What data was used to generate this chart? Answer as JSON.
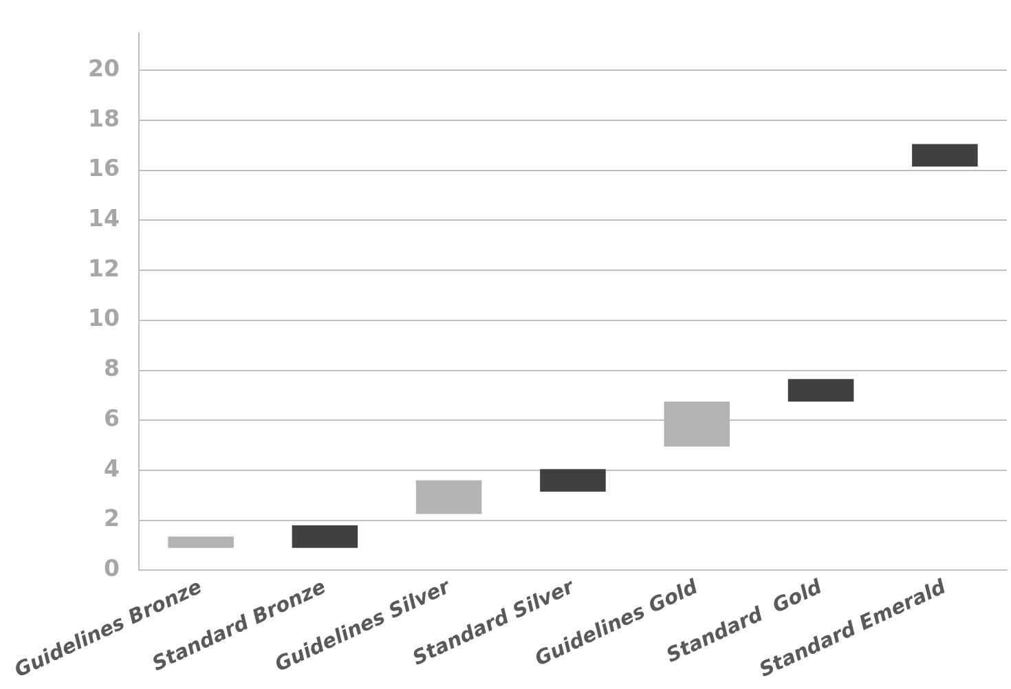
{
  "chart_data": {
    "type": "bar",
    "categories": [
      "Guidelines Bronze",
      "Standard Bronze",
      "Guidelines Silver",
      "Standard Silver",
      "Guidelines Gold",
      "Standard  Gold",
      "Standard Emerald"
    ],
    "base": [
      0.9,
      0.9,
      2.25,
      3.15,
      4.95,
      6.75,
      16.15
    ],
    "values": [
      0.45,
      0.9,
      1.35,
      0.9,
      1.8,
      0.9,
      0.9
    ],
    "colors": [
      "#b3b3b3",
      "#404040",
      "#b3b3b3",
      "#404040",
      "#b3b3b3",
      "#404040",
      "#404040"
    ],
    "ylim": [
      0,
      21.5
    ],
    "yticks": [
      0,
      2,
      4,
      6,
      8,
      10,
      12,
      14,
      16,
      18,
      20
    ],
    "grid": "y",
    "legend": false
  }
}
